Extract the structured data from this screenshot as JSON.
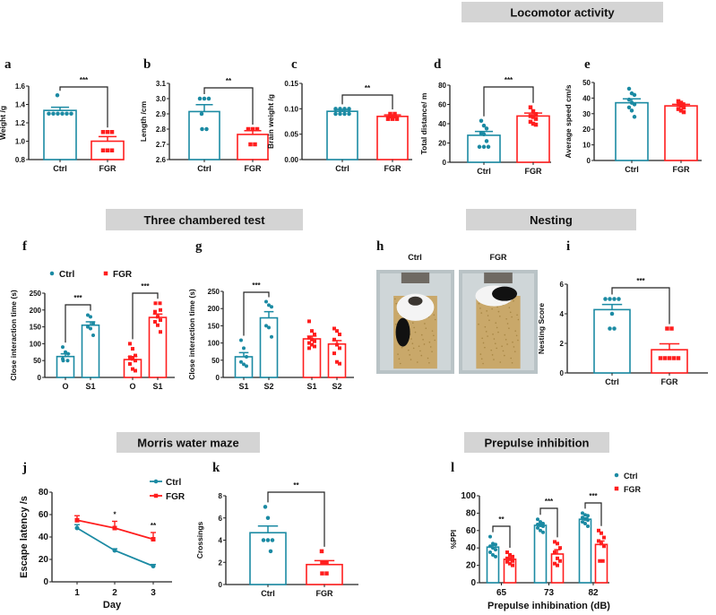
{
  "colors": {
    "ctrl": "#1b8aa3",
    "fgr": "#ff1e1e",
    "section_bg": "#d4d4d4"
  },
  "sections": [
    "Locomotor activity",
    "Three chambered test",
    "Nesting",
    "Morris water maze",
    "Prepulse inhibition"
  ],
  "panel_letters": [
    "a",
    "b",
    "c",
    "d",
    "e",
    "f",
    "g",
    "h",
    "i",
    "j",
    "k",
    "l"
  ],
  "photos": {
    "labels": [
      "Ctrl",
      "FGR"
    ]
  },
  "chart_data": [
    {
      "panel": "a",
      "type": "bar",
      "ylabel": "Weight /g",
      "ylim": [
        0.8,
        1.6
      ],
      "ticks": [
        "0.8",
        "1.0",
        "1.2",
        "1.4",
        "1.6"
      ],
      "xticks": [
        "Ctrl",
        "FGR"
      ],
      "bars": [
        {
          "group": "ctrl",
          "mean": 1.335,
          "err": 0.035,
          "points": [
            1.5,
            1.3,
            1.3,
            1.3,
            1.3,
            1.3,
            1.3
          ]
        },
        {
          "group": "fgr",
          "mean": 1.0,
          "err": 0.05,
          "points": [
            1.1,
            1.1,
            1.1,
            0.9,
            0.9,
            0.9
          ]
        }
      ],
      "brackets": [
        {
          "from": 0,
          "to": 1,
          "label": "***"
        }
      ]
    },
    {
      "panel": "b",
      "type": "bar",
      "ylabel": "Length /cm",
      "ylim": [
        2.6,
        3.1
      ],
      "ticks": [
        "2.6",
        "2.7",
        "2.8",
        "2.9",
        "3.0",
        "3.1"
      ],
      "xticks": [
        "Ctrl",
        "FGR"
      ],
      "bars": [
        {
          "group": "ctrl",
          "mean": 2.915,
          "err": 0.045,
          "points": [
            3.0,
            3.0,
            3.0,
            2.9,
            2.8,
            2.8
          ]
        },
        {
          "group": "fgr",
          "mean": 2.765,
          "err": 0.025,
          "points": [
            2.8,
            2.8,
            2.8,
            2.7,
            2.7
          ]
        }
      ],
      "brackets": [
        {
          "from": 0,
          "to": 1,
          "label": "**"
        }
      ]
    },
    {
      "panel": "c",
      "type": "bar",
      "ylabel": "Brain weight /g",
      "ylim": [
        0,
        0.15
      ],
      "ticks": [
        "0.00",
        "0.05",
        "0.10",
        "0.15"
      ],
      "xticks": [
        "Ctrl",
        "FGR"
      ],
      "bars": [
        {
          "group": "ctrl",
          "mean": 0.095,
          "err": 0.003,
          "points": [
            0.1,
            0.1,
            0.1,
            0.1,
            0.09,
            0.09,
            0.09,
            0.09
          ]
        },
        {
          "group": "fgr",
          "mean": 0.085,
          "err": 0.003,
          "points": [
            0.09,
            0.09,
            0.085,
            0.085,
            0.08,
            0.08,
            0.08
          ]
        }
      ],
      "brackets": [
        {
          "from": 0,
          "to": 1,
          "label": "**"
        }
      ]
    },
    {
      "panel": "d",
      "type": "bar",
      "ylabel": "Total distance/ m",
      "ylim": [
        0,
        80
      ],
      "ticks": [
        "0",
        "20",
        "40",
        "60",
        "80"
      ],
      "xticks": [
        "Ctrl",
        "FGR"
      ],
      "bars": [
        {
          "group": "ctrl",
          "mean": 28,
          "err": 4,
          "points": [
            43,
            38,
            35,
            30,
            29,
            22,
            16,
            16,
            16
          ]
        },
        {
          "group": "fgr",
          "mean": 48,
          "err": 3,
          "points": [
            57,
            53,
            50,
            48,
            47,
            45,
            42,
            40,
            39
          ]
        }
      ],
      "brackets": [
        {
          "from": 0,
          "to": 1,
          "label": "***"
        }
      ]
    },
    {
      "panel": "e",
      "type": "bar",
      "ylabel": "Average speed cm/s",
      "ylim": [
        0,
        50
      ],
      "ticks": [
        "0",
        "10",
        "20",
        "30",
        "40",
        "50"
      ],
      "xticks": [
        "Ctrl",
        "FGR"
      ],
      "bars": [
        {
          "group": "ctrl",
          "mean": 37,
          "err": 2.5,
          "points": [
            46,
            43,
            42,
            39,
            37,
            36,
            34,
            32,
            28
          ]
        },
        {
          "group": "fgr",
          "mean": 35,
          "err": 1,
          "points": [
            38,
            37,
            36,
            36,
            35,
            34,
            33,
            32,
            31
          ]
        }
      ],
      "brackets": []
    },
    {
      "panel": "f",
      "type": "bar",
      "ylabel": "Close interaction time (s)",
      "ylim": [
        0,
        250
      ],
      "ticks": [
        "0",
        "50",
        "100",
        "150",
        "200",
        "250"
      ],
      "xticks": [
        "O",
        "S1",
        "O",
        "S1"
      ],
      "legend": [
        "Ctrl",
        "FGR"
      ],
      "bars": [
        {
          "group": "ctrl",
          "mean": 62,
          "err": 8,
          "points": [
            90,
            75,
            70,
            55,
            50,
            50
          ]
        },
        {
          "group": "ctrl",
          "mean": 155,
          "err": 10,
          "points": [
            185,
            180,
            160,
            150,
            145,
            125
          ]
        },
        {
          "group": "fgr",
          "mean": 53,
          "err": 9,
          "points": [
            100,
            85,
            65,
            60,
            55,
            50,
            40,
            25,
            20
          ]
        },
        {
          "group": "fgr",
          "mean": 178,
          "err": 10,
          "points": [
            220,
            220,
            200,
            195,
            180,
            170,
            165,
            155,
            135
          ]
        }
      ],
      "brackets": [
        {
          "from": 0,
          "to": 1,
          "label": "***"
        },
        {
          "from": 2,
          "to": 3,
          "label": "***"
        }
      ]
    },
    {
      "panel": "g",
      "type": "bar",
      "ylabel": "Close interaction time (s)",
      "ylim": [
        0,
        250
      ],
      "ticks": [
        "0",
        "50",
        "100",
        "150",
        "200",
        "250"
      ],
      "xticks": [
        "S1",
        "S2",
        "S1",
        "S2"
      ],
      "bars": [
        {
          "group": "ctrl",
          "mean": 60,
          "err": 12,
          "points": [
            108,
            85,
            60,
            45,
            38,
            33
          ]
        },
        {
          "group": "ctrl",
          "mean": 173,
          "err": 18,
          "points": [
            220,
            210,
            205,
            150,
            145,
            118
          ]
        },
        {
          "group": "fgr",
          "mean": 112,
          "err": 8,
          "points": [
            163,
            135,
            125,
            115,
            110,
            105,
            100,
            95,
            90,
            85
          ]
        },
        {
          "group": "fgr",
          "mean": 97,
          "err": 10,
          "points": [
            142,
            135,
            125,
            110,
            95,
            85,
            70,
            45,
            40
          ]
        }
      ],
      "brackets": [
        {
          "from": 0,
          "to": 1,
          "label": "***"
        }
      ]
    },
    {
      "panel": "i",
      "type": "bar",
      "ylabel": "Nesting Score",
      "ylim": [
        0,
        6
      ],
      "ticks": [
        "0",
        "2",
        "4",
        "6"
      ],
      "xticks": [
        "Ctrl",
        "FGR"
      ],
      "bars": [
        {
          "group": "ctrl",
          "mean": 4.28,
          "err": 0.35,
          "points": [
            5,
            5,
            5,
            5,
            4,
            3,
            3
          ]
        },
        {
          "group": "fgr",
          "mean": 1.57,
          "err": 0.4,
          "points": [
            3,
            3,
            1,
            1,
            1,
            1,
            1
          ]
        }
      ],
      "brackets": [
        {
          "from": 0,
          "to": 1,
          "label": "***"
        }
      ]
    },
    {
      "panel": "j",
      "type": "line",
      "ylabel": "Escape latency /s",
      "xlabel": "Day",
      "ylim": [
        0,
        80
      ],
      "ticks": [
        "0",
        "20",
        "40",
        "60",
        "80"
      ],
      "xticks": [
        "1",
        "2",
        "3"
      ],
      "x": [
        1,
        2,
        3
      ],
      "series": [
        {
          "name": "Ctrl",
          "group": "ctrl",
          "values": [
            48,
            28,
            14
          ],
          "err": [
            3,
            1.5,
            1.5
          ]
        },
        {
          "name": "FGR",
          "group": "fgr",
          "values": [
            55,
            48,
            38
          ],
          "err": [
            4,
            6,
            6
          ]
        }
      ],
      "sig": [
        "",
        "*",
        "**"
      ]
    },
    {
      "panel": "k",
      "type": "bar",
      "ylabel": "Crossings",
      "ylim": [
        0,
        8
      ],
      "ticks": [
        "0",
        "2",
        "4",
        "6",
        "8"
      ],
      "xticks": [
        "Ctrl",
        "FGR"
      ],
      "bars": [
        {
          "group": "ctrl",
          "mean": 4.67,
          "err": 0.6,
          "points": [
            7,
            6,
            4,
            4,
            4,
            3
          ]
        },
        {
          "group": "fgr",
          "mean": 1.8,
          "err": 0.35,
          "points": [
            3,
            2,
            2,
            1,
            1
          ]
        }
      ],
      "brackets": [
        {
          "from": 0,
          "to": 1,
          "label": "**"
        }
      ]
    },
    {
      "panel": "l",
      "type": "bar",
      "ylabel": "%PPI",
      "xlabel": "Prepulse inhibination (dB)",
      "ylim": [
        0,
        100
      ],
      "ticks": [
        "0",
        "20",
        "40",
        "60",
        "80",
        "100"
      ],
      "xticks": [
        "65",
        "73",
        "82"
      ],
      "legend": [
        "Ctrl",
        "FGR"
      ],
      "bars": [
        {
          "group": "ctrl",
          "mean": 41,
          "err": 2,
          "points": [
            53,
            45,
            44,
            42,
            40,
            38,
            35,
            32,
            30
          ]
        },
        {
          "group": "fgr",
          "mean": 27,
          "err": 2,
          "points": [
            35,
            32,
            30,
            28,
            27,
            25,
            24,
            22,
            20
          ]
        },
        {
          "group": "ctrl",
          "mean": 66,
          "err": 1.5,
          "points": [
            73,
            70,
            68,
            67,
            66,
            65,
            63,
            60,
            58
          ]
        },
        {
          "group": "fgr",
          "mean": 33,
          "err": 5,
          "points": [
            47,
            45,
            40,
            35,
            28,
            25,
            22,
            20
          ]
        },
        {
          "group": "ctrl",
          "mean": 73,
          "err": 1.5,
          "points": [
            80,
            78,
            77,
            75,
            73,
            72,
            70,
            68,
            65
          ]
        },
        {
          "group": "fgr",
          "mean": 44,
          "err": 4,
          "points": [
            60,
            57,
            52,
            48,
            45,
            42,
            25,
            25
          ]
        }
      ],
      "brackets": [
        {
          "from": 0,
          "to": 1,
          "label": "**"
        },
        {
          "from": 2,
          "to": 3,
          "label": "***"
        },
        {
          "from": 4,
          "to": 5,
          "label": "***"
        }
      ]
    }
  ]
}
